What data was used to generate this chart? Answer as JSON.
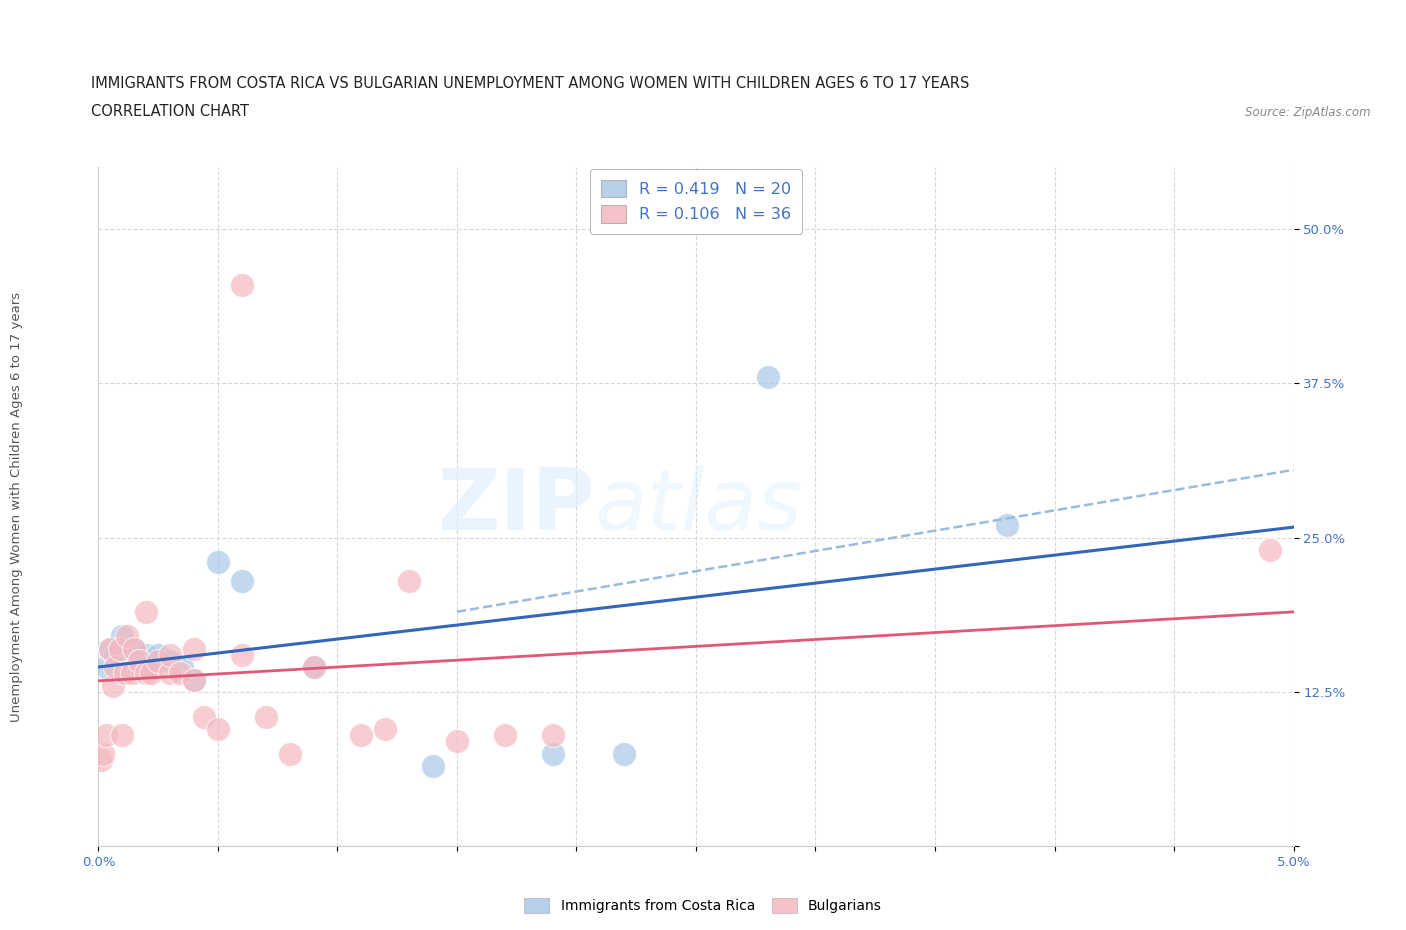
{
  "title_line1": "IMMIGRANTS FROM COSTA RICA VS BULGARIAN UNEMPLOYMENT AMONG WOMEN WITH CHILDREN AGES 6 TO 17 YEARS",
  "title_line2": "CORRELATION CHART",
  "source_text": "Source: ZipAtlas.com",
  "ylabel": "Unemployment Among Women with Children Ages 6 to 17 years",
  "xlim": [
    0.0,
    0.05
  ],
  "ylim": [
    0.0,
    0.55
  ],
  "yticks": [
    0.0,
    0.125,
    0.25,
    0.375,
    0.5
  ],
  "ytick_labels": [
    "",
    "12.5%",
    "25.0%",
    "37.5%",
    "50.0%"
  ],
  "xticks": [
    0.0,
    0.005,
    0.01,
    0.015,
    0.02,
    0.025,
    0.03,
    0.035,
    0.04,
    0.045,
    0.05
  ],
  "xtick_labels": [
    "0.0%",
    "",
    "",
    "",
    "",
    "",
    "",
    "",
    "",
    "",
    "5.0%"
  ],
  "grid_color": "#d8d8d8",
  "background_color": "#ffffff",
  "legend_r1": "R = 0.419",
  "legend_n1": "N = 20",
  "legend_r2": "R = 0.106",
  "legend_n2": "N = 36",
  "blue_color": "#aac8e8",
  "pink_color": "#f4b8c0",
  "blue_line_color": "#3366bb",
  "pink_line_color": "#e05878",
  "dashed_line_color": "#99bbdd",
  "blue_points": [
    [
      0.0003,
      0.145
    ],
    [
      0.0005,
      0.16
    ],
    [
      0.0007,
      0.155
    ],
    [
      0.001,
      0.17
    ],
    [
      0.0013,
      0.155
    ],
    [
      0.0015,
      0.16
    ],
    [
      0.002,
      0.155
    ],
    [
      0.002,
      0.145
    ],
    [
      0.0025,
      0.155
    ],
    [
      0.003,
      0.15
    ],
    [
      0.0035,
      0.145
    ],
    [
      0.004,
      0.135
    ],
    [
      0.005,
      0.23
    ],
    [
      0.006,
      0.215
    ],
    [
      0.009,
      0.145
    ],
    [
      0.014,
      0.065
    ],
    [
      0.019,
      0.075
    ],
    [
      0.022,
      0.075
    ],
    [
      0.028,
      0.38
    ],
    [
      0.038,
      0.26
    ]
  ],
  "pink_points": [
    [
      0.0001,
      0.07
    ],
    [
      0.0002,
      0.075
    ],
    [
      0.0003,
      0.09
    ],
    [
      0.0005,
      0.16
    ],
    [
      0.0006,
      0.13
    ],
    [
      0.0007,
      0.145
    ],
    [
      0.0009,
      0.16
    ],
    [
      0.001,
      0.09
    ],
    [
      0.0011,
      0.14
    ],
    [
      0.0012,
      0.17
    ],
    [
      0.0014,
      0.14
    ],
    [
      0.0015,
      0.16
    ],
    [
      0.0017,
      0.15
    ],
    [
      0.002,
      0.14
    ],
    [
      0.002,
      0.19
    ],
    [
      0.0022,
      0.14
    ],
    [
      0.0025,
      0.15
    ],
    [
      0.003,
      0.14
    ],
    [
      0.003,
      0.155
    ],
    [
      0.0034,
      0.14
    ],
    [
      0.004,
      0.135
    ],
    [
      0.004,
      0.16
    ],
    [
      0.0044,
      0.105
    ],
    [
      0.005,
      0.095
    ],
    [
      0.006,
      0.455
    ],
    [
      0.006,
      0.155
    ],
    [
      0.007,
      0.105
    ],
    [
      0.008,
      0.075
    ],
    [
      0.009,
      0.145
    ],
    [
      0.011,
      0.09
    ],
    [
      0.012,
      0.095
    ],
    [
      0.013,
      0.215
    ],
    [
      0.015,
      0.085
    ],
    [
      0.017,
      0.09
    ],
    [
      0.019,
      0.09
    ],
    [
      0.049,
      0.24
    ]
  ],
  "watermark_zip": "ZIP",
  "watermark_atlas": "atlas",
  "title_fontsize": 10.5,
  "axis_label_fontsize": 9.5,
  "tick_fontsize": 9.5,
  "legend_fontsize": 11.5
}
